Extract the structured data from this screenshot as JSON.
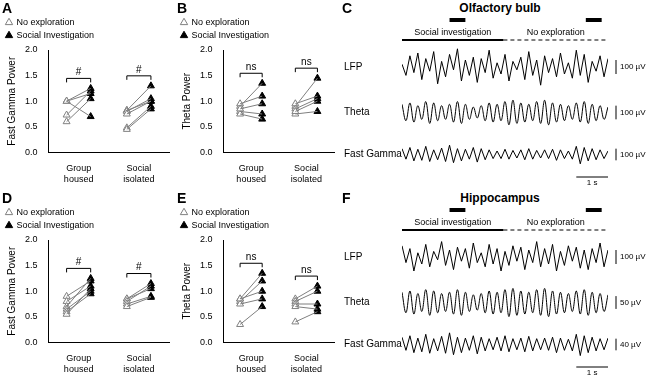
{
  "chart_data": [
    {
      "panel": "A",
      "type": "scatter",
      "y_label": "Fast Gamma Power",
      "categories": [
        "Group housed",
        "Social isolated"
      ],
      "ylim": [
        0,
        2
      ],
      "yticks": [
        {
          "value": 0,
          "label": "0.0"
        },
        {
          "value": 0.5,
          "label": "0.5"
        },
        {
          "value": 1,
          "label": "1.0"
        },
        {
          "value": 1.5,
          "label": "1.5"
        },
        {
          "value": 2,
          "label": "2.0"
        }
      ],
      "legend": "top-left",
      "series": [
        {
          "name": "No exploration",
          "marker": "open_triangle",
          "color": "#808080",
          "values": [
            [
              1.0,
              1.0,
              0.73,
              0.6,
              1.0
            ],
            [
              0.82,
              0.82,
              0.8,
              0.48,
              0.45,
              0.75
            ]
          ]
        },
        {
          "name": "Social Investigation",
          "marker": "filled_triangle",
          "color": "#000000",
          "values": [
            [
              1.25,
              1.15,
              1.2,
              1.05,
              0.7
            ],
            [
              1.3,
              1.0,
              1.05,
              0.9,
              0.85,
              1.0
            ]
          ]
        }
      ],
      "annotations": [
        "#",
        "#"
      ]
    },
    {
      "panel": "B",
      "type": "scatter",
      "y_label": "Theta Power",
      "categories": [
        "Group housed",
        "Social isolated"
      ],
      "ylim": [
        0,
        2
      ],
      "yticks": [
        {
          "value": 0,
          "label": "0.0"
        },
        {
          "value": 0.5,
          "label": "0.5"
        },
        {
          "value": 1,
          "label": "1.0"
        },
        {
          "value": 1.5,
          "label": "1.5"
        },
        {
          "value": 2,
          "label": "2.0"
        }
      ],
      "legend": "top-left",
      "series": [
        {
          "name": "No exploration",
          "marker": "open_triangle",
          "color": "#808080",
          "values": [
            [
              0.9,
              0.95,
              0.8,
              0.75,
              0.85
            ],
            [
              0.9,
              0.85,
              0.95,
              0.75,
              0.8
            ]
          ]
        },
        {
          "name": "Social Investigation",
          "marker": "filled_triangle",
          "color": "#000000",
          "values": [
            [
              1.35,
              1.1,
              0.75,
              0.65,
              0.95
            ],
            [
              1.45,
              1.05,
              1.1,
              0.8,
              1.0
            ]
          ]
        }
      ],
      "annotations": [
        "ns",
        "ns"
      ]
    },
    {
      "panel": "C",
      "type": "line",
      "title": "Olfactory bulb",
      "x": [
        0,
        0.125,
        0.25,
        0.375,
        0.5,
        0.625,
        0.75,
        0.875,
        1,
        1.125,
        1.25,
        1.375,
        1.5,
        1.625,
        1.75,
        1.875,
        2,
        2.125,
        2.25,
        2.375,
        2.5,
        2.625,
        2.75,
        2.875,
        3,
        3.125,
        3.25,
        3.375,
        3.5,
        3.625,
        3.75,
        3.875,
        4,
        4.125,
        4.25,
        4.375,
        4.5,
        4.625,
        4.75,
        4.875,
        5,
        5.125,
        5.25,
        5.375,
        5.5,
        5.625,
        5.75,
        5.875,
        6,
        6.125,
        6.25,
        6.375,
        6.5
      ],
      "xlim": [
        0,
        6.5
      ],
      "periods": [
        {
          "label": "Social investigation",
          "start": 0,
          "end": 3.2,
          "line_style": "solid"
        },
        {
          "label": "No exploration",
          "start": 3.2,
          "end": 6.5,
          "line_style": "dashed"
        }
      ],
      "events": [
        {
          "start": 1.5,
          "end": 2.0
        },
        {
          "start": 5.8,
          "end": 6.3
        }
      ],
      "time_scale": {
        "value": 1,
        "label": "1 s"
      },
      "series": [
        {
          "name": "LFP",
          "color": "#000000",
          "line_style": "solid",
          "ylim": [
            -150,
            150
          ],
          "scale_bar": {
            "value": 100,
            "label": "100 µV"
          },
          "values": [
            20,
            -60,
            80,
            -40,
            100,
            -90,
            60,
            -30,
            110,
            -120,
            40,
            -70,
            90,
            -20,
            130,
            -100,
            50,
            -60,
            70,
            -110,
            60,
            -40,
            120,
            -80,
            30,
            -50,
            90,
            -100,
            40,
            -20,
            70,
            -90,
            110,
            -60,
            50,
            -130,
            80,
            -40,
            60,
            -70,
            100,
            -50,
            30,
            -80,
            120,
            -60,
            90,
            -110,
            40,
            -30,
            80,
            -70,
            60
          ]
        },
        {
          "name": "Theta",
          "color": "#000000",
          "line_style": "smooth",
          "ylim": [
            -150,
            150
          ],
          "scale_bar": {
            "value": 100,
            "label": "100 µV"
          },
          "values": [
            60,
            -60,
            70,
            -70,
            50,
            -50,
            80,
            -80,
            70,
            -60,
            50,
            -50,
            60,
            -70,
            80,
            -80,
            60,
            -50,
            40,
            -40,
            50,
            -60,
            70,
            -70,
            60,
            -60,
            80,
            -90,
            90,
            -80,
            70,
            -70,
            60,
            -60,
            80,
            -80,
            90,
            -90,
            70,
            -70,
            60,
            -60,
            50,
            -50,
            70,
            -70,
            80,
            -80,
            60,
            -60,
            50,
            -50,
            40
          ]
        },
        {
          "name": "Fast Gamma",
          "color": "#000000",
          "line_style": "solid",
          "ylim": [
            -150,
            150
          ],
          "scale_bar": {
            "value": 100,
            "label": "100 µV"
          },
          "values": [
            50,
            -40,
            60,
            -55,
            45,
            -50,
            70,
            -60,
            40,
            -45,
            55,
            -60,
            80,
            -70,
            50,
            -55,
            45,
            -40,
            60,
            -65,
            50,
            -45,
            40,
            -35,
            30,
            -35,
            45,
            -40,
            35,
            -30,
            40,
            -45,
            50,
            -40,
            35,
            -30,
            40,
            -35,
            45,
            -50,
            40,
            -35,
            30,
            -40,
            70,
            -80,
            60,
            -55,
            50,
            -45,
            40,
            -35,
            30
          ]
        }
      ]
    },
    {
      "panel": "D",
      "type": "scatter",
      "y_label": "Fast Gamma Power",
      "categories": [
        "Group housed",
        "Social isolated"
      ],
      "ylim": [
        0,
        2
      ],
      "yticks": [
        {
          "value": 0,
          "label": "0.0"
        },
        {
          "value": 0.5,
          "label": "0.5"
        },
        {
          "value": 1,
          "label": "1.0"
        },
        {
          "value": 1.5,
          "label": "1.5"
        },
        {
          "value": 2,
          "label": "2.0"
        }
      ],
      "legend": "top-left",
      "series": [
        {
          "name": "No exploration",
          "marker": "open_triangle",
          "color": "#808080",
          "values": [
            [
              0.9,
              0.8,
              0.7,
              0.65,
              0.6,
              0.55
            ],
            [
              0.85,
              0.85,
              0.8,
              0.75,
              0.7
            ]
          ]
        },
        {
          "name": "Social Investigation",
          "marker": "filled_triangle",
          "color": "#000000",
          "values": [
            [
              1.2,
              1.1,
              1.25,
              1.0,
              0.95,
              1.05
            ],
            [
              1.15,
              1.05,
              1.1,
              0.9,
              0.88
            ]
          ]
        }
      ],
      "annotations": [
        "#",
        "#"
      ]
    },
    {
      "panel": "E",
      "type": "scatter",
      "y_label": "Theta Power",
      "categories": [
        "Group housed",
        "Social isolated"
      ],
      "ylim": [
        0,
        2
      ],
      "yticks": [
        {
          "value": 0,
          "label": "0.0"
        },
        {
          "value": 0.5,
          "label": "0.5"
        },
        {
          "value": 1,
          "label": "1.0"
        },
        {
          "value": 1.5,
          "label": "1.5"
        },
        {
          "value": 2,
          "label": "2.0"
        }
      ],
      "legend": "top-left",
      "series": [
        {
          "name": "No exploration",
          "marker": "open_triangle",
          "color": "#808080",
          "values": [
            [
              0.85,
              0.8,
              0.75,
              0.85,
              0.35
            ],
            [
              0.85,
              0.8,
              0.75,
              0.7,
              0.4
            ]
          ]
        },
        {
          "name": "Social Investigation",
          "marker": "filled_triangle",
          "color": "#000000",
          "values": [
            [
              1.35,
              1.2,
              0.85,
              1.0,
              0.7
            ],
            [
              1.1,
              1.0,
              0.75,
              0.65,
              0.6
            ]
          ]
        }
      ],
      "annotations": [
        "ns",
        "ns"
      ]
    },
    {
      "panel": "F",
      "type": "line",
      "title": "Hippocampus",
      "x": [
        0,
        0.125,
        0.25,
        0.375,
        0.5,
        0.625,
        0.75,
        0.875,
        1,
        1.125,
        1.25,
        1.375,
        1.5,
        1.625,
        1.75,
        1.875,
        2,
        2.125,
        2.25,
        2.375,
        2.5,
        2.625,
        2.75,
        2.875,
        3,
        3.125,
        3.25,
        3.375,
        3.5,
        3.625,
        3.75,
        3.875,
        4,
        4.125,
        4.25,
        4.375,
        4.5,
        4.625,
        4.75,
        4.875,
        5,
        5.125,
        5.25,
        5.375,
        5.5,
        5.625,
        5.75,
        5.875,
        6,
        6.125,
        6.25,
        6.375,
        6.5
      ],
      "xlim": [
        0,
        6.5
      ],
      "periods": [
        {
          "label": "Social investigation",
          "start": 0,
          "end": 3.2,
          "line_style": "solid"
        },
        {
          "label": "No exploration",
          "start": 3.2,
          "end": 6.5,
          "line_style": "dashed"
        }
      ],
      "events": [
        {
          "start": 1.5,
          "end": 2.0
        },
        {
          "start": 5.8,
          "end": 6.3
        }
      ],
      "time_scale": {
        "value": 1,
        "label": "1 s"
      },
      "series": [
        {
          "name": "LFP",
          "color": "#000000",
          "line_style": "solid",
          "ylim": [
            -150,
            150
          ],
          "scale_bar": {
            "value": 100,
            "label": "100 µV"
          },
          "values": [
            80,
            -40,
            60,
            -100,
            30,
            -50,
            90,
            -70,
            40,
            -20,
            110,
            -60,
            50,
            -90,
            70,
            -30,
            60,
            -80,
            100,
            -40,
            30,
            -70,
            90,
            -50,
            60,
            -100,
            40,
            -60,
            80,
            -30,
            70,
            -90,
            50,
            -40,
            110,
            -70,
            60,
            -50,
            90,
            -100,
            40,
            -60,
            80,
            -30,
            70,
            -80,
            50,
            -90,
            60,
            -40,
            100,
            -70,
            50
          ]
        },
        {
          "name": "Theta",
          "color": "#000000",
          "line_style": "smooth",
          "ylim": [
            -80,
            80
          ],
          "scale_bar": {
            "value": 50,
            "label": "50 µV"
          },
          "values": [
            40,
            -40,
            45,
            -45,
            35,
            -35,
            50,
            -50,
            45,
            -40,
            35,
            -35,
            40,
            -45,
            50,
            -50,
            40,
            -35,
            30,
            -30,
            35,
            -40,
            45,
            -45,
            40,
            -40,
            50,
            -55,
            55,
            -50,
            45,
            -45,
            40,
            -40,
            50,
            -50,
            55,
            -55,
            45,
            -45,
            40,
            -40,
            35,
            -35,
            45,
            -45,
            50,
            -50,
            40,
            -40,
            35,
            -35,
            30
          ]
        },
        {
          "name": "Fast Gamma",
          "color": "#000000",
          "line_style": "solid",
          "ylim": [
            -60,
            60
          ],
          "scale_bar": {
            "value": 40,
            "label": "40 µV"
          },
          "values": [
            25,
            -20,
            30,
            -28,
            22,
            -25,
            35,
            -30,
            20,
            -22,
            28,
            -30,
            40,
            -35,
            25,
            -28,
            22,
            -20,
            30,
            -32,
            25,
            -22,
            20,
            -18,
            25,
            -22,
            30,
            -25,
            20,
            -18,
            22,
            -25,
            28,
            -22,
            20,
            -18,
            22,
            -20,
            25,
            -28,
            22,
            -20,
            18,
            -22,
            35,
            -38,
            30,
            -28,
            25,
            -22,
            20,
            -18,
            22
          ]
        }
      ]
    }
  ]
}
